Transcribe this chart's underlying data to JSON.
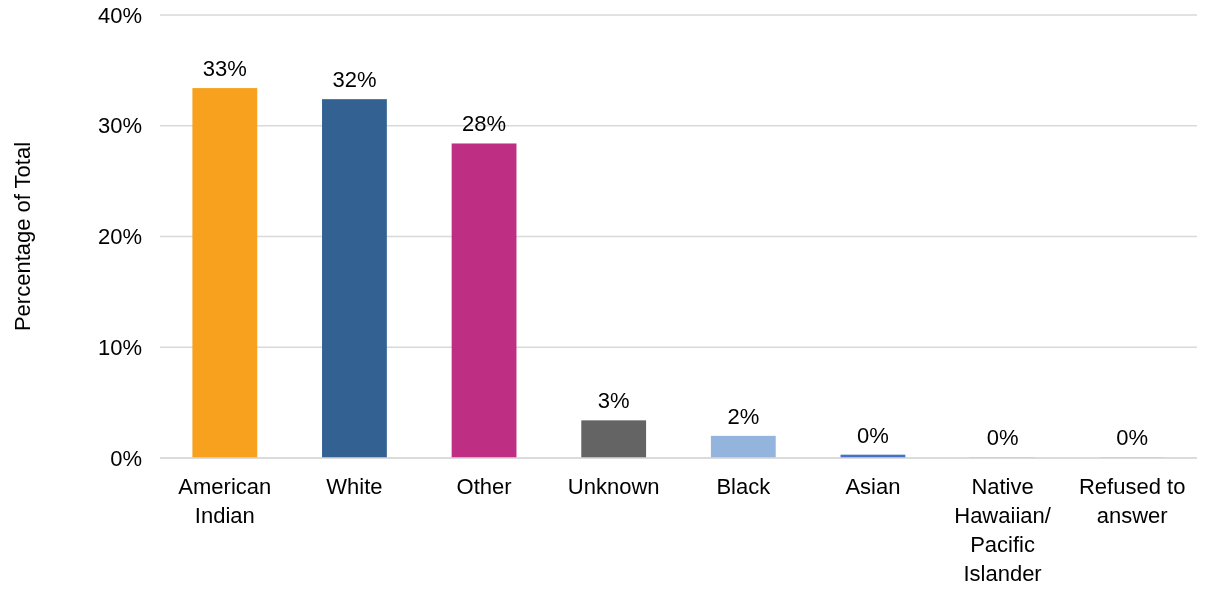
{
  "chart_data": {
    "type": "bar",
    "ylabel": "Percentage of Total",
    "categories": [
      "American Indian",
      "White",
      "Other",
      "Unknown",
      "Black",
      "Asian",
      "Native Hawaiian/ Pacific Islander",
      "Refused to answer"
    ],
    "values": [
      33.4,
      32.4,
      28.4,
      3.4,
      2.0,
      0.3,
      0.05,
      0.05
    ],
    "colors": [
      "#f7a11e",
      "#336192",
      "#be2f83",
      "#646464",
      "#93b4dc",
      "#4472c4",
      "#a5a5a5",
      "#a5a5a5"
    ],
    "value_labels": [
      "33%",
      "32%",
      "28%",
      "3%",
      "2%",
      "0%",
      "0%",
      "0%"
    ],
    "ylim": [
      0,
      40
    ],
    "yticks": [
      {
        "value": 0,
        "label": "0%"
      },
      {
        "value": 10,
        "label": "10%"
      },
      {
        "value": 20,
        "label": "20%"
      },
      {
        "value": 30,
        "label": "30%"
      },
      {
        "value": 40,
        "label": "40%"
      }
    ],
    "grid": "y"
  }
}
